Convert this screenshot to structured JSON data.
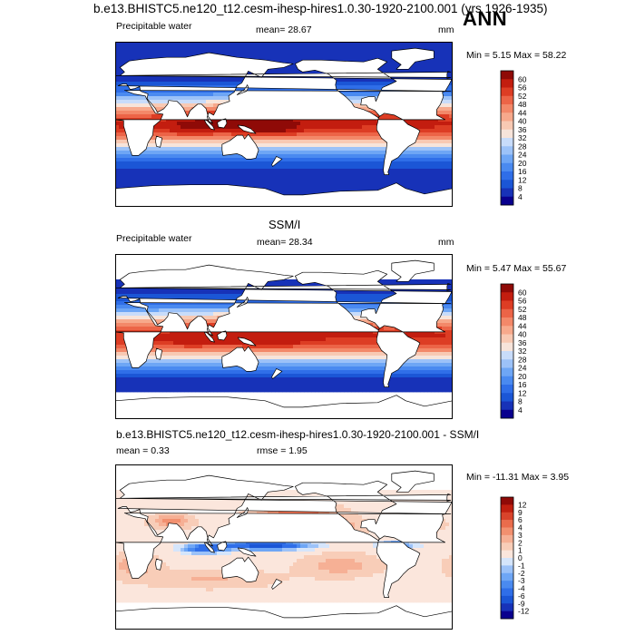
{
  "header": {
    "title": "b.e13.BHISTC5.ne120_t12.cesm-ihesp-hires1.0.30-1920-2100.001 (yrs 1926-1935)",
    "season": "ANN"
  },
  "panels": [
    {
      "variable": "Precipitable water",
      "mean_text": "mean=  28.67",
      "units": "mm",
      "minmax_text": "Min =   5.15 Max =  58.22",
      "subtitle": "",
      "colorbar_labels": [
        "60",
        "56",
        "52",
        "48",
        "44",
        "40",
        "36",
        "32",
        "28",
        "24",
        "20",
        "16",
        "12",
        "8",
        "4"
      ]
    },
    {
      "variable": "Precipitable water",
      "mean_text": "mean=  28.34",
      "units": "mm",
      "minmax_text": "Min =   5.47 Max =  55.67",
      "subtitle": "SSM/I",
      "colorbar_labels": [
        "60",
        "56",
        "52",
        "48",
        "44",
        "40",
        "36",
        "32",
        "28",
        "24",
        "20",
        "16",
        "12",
        "8",
        "4"
      ]
    },
    {
      "variable": "",
      "mean_text": "mean =   0.33",
      "rmse_text": "rmse =   1.95",
      "minmax_text": "Min = -11.31 Max =   3.95",
      "subtitle": "b.e13.BHISTC5.ne120_t12.cesm-ihesp-hires1.0.30-1920-2100.001 - SSM/I",
      "colorbar_labels": [
        "12",
        "9",
        "6",
        "4",
        "3",
        "2",
        "1",
        "0",
        "-1",
        "-2",
        "-3",
        "-4",
        "-6",
        "-9",
        "-12"
      ]
    }
  ],
  "colors": {
    "abs_scale": [
      "#09008e",
      "#1732b8",
      "#1b56d6",
      "#2f6ee8",
      "#4a8af0",
      "#6ea6f5",
      "#9cc2f8",
      "#c8dcfa",
      "#f7e4da",
      "#f8c9b3",
      "#f7a98c",
      "#f38869",
      "#ec6447",
      "#dd3d24",
      "#c31d0f",
      "#8f0a07"
    ],
    "diff_scale": [
      "#09008e",
      "#1732b8",
      "#1b56d6",
      "#2f6ee8",
      "#4a8af0",
      "#6ea6f5",
      "#9cc2f8",
      "#d5e5fb",
      "#fbe6dc",
      "#f8cdb8",
      "#f6b095",
      "#f2906f",
      "#ea6c4c",
      "#d9432b",
      "#c01f10",
      "#8f0a07"
    ],
    "land": "#ffffff",
    "outline": "#000000"
  }
}
